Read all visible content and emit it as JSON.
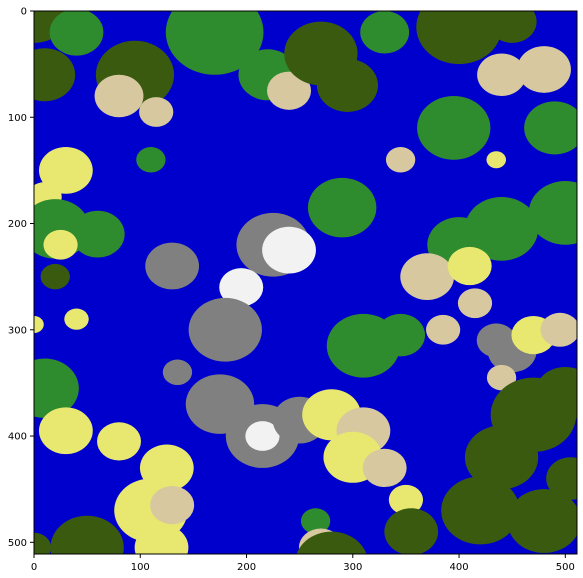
{
  "chart_data": {
    "type": "heatmap",
    "title": "",
    "xlabel": "",
    "ylabel": "",
    "xlim": [
      0,
      511
    ],
    "ylim": [
      511,
      0
    ],
    "x_ticks": [
      "0",
      "100",
      "200",
      "300",
      "400",
      "500"
    ],
    "y_ticks": [
      "0",
      "100",
      "200",
      "300",
      "400",
      "500"
    ],
    "grid": false,
    "legend": "none",
    "colors": {
      "deep_water": "#00008b",
      "water": "#0000cd",
      "sand": "#e8e870",
      "beach": "#d8c8a0",
      "grass": "#2e8b2e",
      "forest": "#3a5a10",
      "rock": "#808080",
      "snow": "#f2f2f2"
    },
    "regions": [
      {
        "terrain": "forest",
        "x": 0,
        "y": 0,
        "r": 30
      },
      {
        "terrain": "forest",
        "x": 10,
        "y": 60,
        "r": 25
      },
      {
        "terrain": "grass",
        "x": 40,
        "y": 20,
        "r": 22
      },
      {
        "terrain": "forest",
        "x": 95,
        "y": 60,
        "r": 32
      },
      {
        "terrain": "beach",
        "x": 80,
        "y": 80,
        "r": 20
      },
      {
        "terrain": "beach",
        "x": 115,
        "y": 95,
        "r": 14
      },
      {
        "terrain": "grass",
        "x": 110,
        "y": 140,
        "r": 12
      },
      {
        "terrain": "sand",
        "x": 30,
        "y": 150,
        "r": 22
      },
      {
        "terrain": "sand",
        "x": 10,
        "y": 175,
        "r": 14
      },
      {
        "terrain": "grass",
        "x": 20,
        "y": 205,
        "r": 28
      },
      {
        "terrain": "grass",
        "x": 60,
        "y": 210,
        "r": 22
      },
      {
        "terrain": "sand",
        "x": 25,
        "y": 220,
        "r": 14
      },
      {
        "terrain": "forest",
        "x": 20,
        "y": 250,
        "r": 12
      },
      {
        "terrain": "sand",
        "x": 40,
        "y": 290,
        "r": 10
      },
      {
        "terrain": "sand",
        "x": 0,
        "y": 295,
        "r": 8
      },
      {
        "terrain": "grass",
        "x": 170,
        "y": 20,
        "r": 40
      },
      {
        "terrain": "grass",
        "x": 220,
        "y": 60,
        "r": 24
      },
      {
        "terrain": "beach",
        "x": 240,
        "y": 75,
        "r": 18
      },
      {
        "terrain": "forest",
        "x": 270,
        "y": 40,
        "r": 30
      },
      {
        "terrain": "forest",
        "x": 295,
        "y": 70,
        "r": 25
      },
      {
        "terrain": "grass",
        "x": 330,
        "y": 20,
        "r": 20
      },
      {
        "terrain": "forest",
        "x": 400,
        "y": 15,
        "r": 35
      },
      {
        "terrain": "forest",
        "x": 450,
        "y": 10,
        "r": 20
      },
      {
        "terrain": "grass",
        "x": 395,
        "y": 110,
        "r": 30
      },
      {
        "terrain": "beach",
        "x": 440,
        "y": 60,
        "r": 20
      },
      {
        "terrain": "beach",
        "x": 480,
        "y": 55,
        "r": 22
      },
      {
        "terrain": "grass",
        "x": 490,
        "y": 110,
        "r": 25
      },
      {
        "terrain": "grass",
        "x": 500,
        "y": 190,
        "r": 30
      },
      {
        "terrain": "beach",
        "x": 345,
        "y": 140,
        "r": 12
      },
      {
        "terrain": "sand",
        "x": 435,
        "y": 140,
        "r": 8
      },
      {
        "terrain": "grass",
        "x": 290,
        "y": 185,
        "r": 28
      },
      {
        "terrain": "grass",
        "x": 400,
        "y": 220,
        "r": 26
      },
      {
        "terrain": "grass",
        "x": 440,
        "y": 205,
        "r": 30
      },
      {
        "terrain": "beach",
        "x": 370,
        "y": 250,
        "r": 22
      },
      {
        "terrain": "sand",
        "x": 410,
        "y": 240,
        "r": 18
      },
      {
        "terrain": "beach",
        "x": 415,
        "y": 275,
        "r": 14
      },
      {
        "terrain": "rock",
        "x": 225,
        "y": 220,
        "r": 30
      },
      {
        "terrain": "rock",
        "x": 130,
        "y": 240,
        "r": 22
      },
      {
        "terrain": "snow",
        "x": 240,
        "y": 225,
        "r": 22
      },
      {
        "terrain": "snow",
        "x": 195,
        "y": 260,
        "r": 18
      },
      {
        "terrain": "rock",
        "x": 180,
        "y": 300,
        "r": 30
      },
      {
        "terrain": "rock",
        "x": 135,
        "y": 340,
        "r": 12
      },
      {
        "terrain": "grass",
        "x": 310,
        "y": 315,
        "r": 30
      },
      {
        "terrain": "grass",
        "x": 345,
        "y": 305,
        "r": 20
      },
      {
        "terrain": "beach",
        "x": 385,
        "y": 300,
        "r": 14
      },
      {
        "terrain": "grass",
        "x": 10,
        "y": 355,
        "r": 28
      },
      {
        "terrain": "sand",
        "x": 30,
        "y": 395,
        "r": 22
      },
      {
        "terrain": "sand",
        "x": 80,
        "y": 405,
        "r": 18
      },
      {
        "terrain": "sand",
        "x": 125,
        "y": 430,
        "r": 22
      },
      {
        "terrain": "sand",
        "x": 110,
        "y": 470,
        "r": 30
      },
      {
        "terrain": "beach",
        "x": 130,
        "y": 465,
        "r": 18
      },
      {
        "terrain": "sand",
        "x": 120,
        "y": 505,
        "r": 22
      },
      {
        "terrain": "forest",
        "x": 50,
        "y": 505,
        "r": 30
      },
      {
        "terrain": "forest",
        "x": 0,
        "y": 505,
        "r": 14
      },
      {
        "terrain": "rock",
        "x": 175,
        "y": 370,
        "r": 28
      },
      {
        "terrain": "rock",
        "x": 215,
        "y": 400,
        "r": 30
      },
      {
        "terrain": "snow",
        "x": 215,
        "y": 400,
        "r": 14
      },
      {
        "terrain": "rock",
        "x": 250,
        "y": 385,
        "r": 22
      },
      {
        "terrain": "sand",
        "x": 280,
        "y": 380,
        "r": 24
      },
      {
        "terrain": "beach",
        "x": 310,
        "y": 395,
        "r": 22
      },
      {
        "terrain": "sand",
        "x": 300,
        "y": 420,
        "r": 24
      },
      {
        "terrain": "beach",
        "x": 330,
        "y": 430,
        "r": 18
      },
      {
        "terrain": "sand",
        "x": 350,
        "y": 460,
        "r": 14
      },
      {
        "terrain": "grass",
        "x": 265,
        "y": 480,
        "r": 12
      },
      {
        "terrain": "beach",
        "x": 270,
        "y": 505,
        "r": 18
      },
      {
        "terrain": "forest",
        "x": 280,
        "y": 520,
        "r": 30
      },
      {
        "terrain": "forest",
        "x": 355,
        "y": 490,
        "r": 22
      },
      {
        "terrain": "rock",
        "x": 435,
        "y": 310,
        "r": 16
      },
      {
        "terrain": "rock",
        "x": 450,
        "y": 320,
        "r": 20
      },
      {
        "terrain": "beach",
        "x": 440,
        "y": 345,
        "r": 12
      },
      {
        "terrain": "sand",
        "x": 470,
        "y": 305,
        "r": 18
      },
      {
        "terrain": "beach",
        "x": 495,
        "y": 300,
        "r": 16
      },
      {
        "terrain": "forest",
        "x": 470,
        "y": 380,
        "r": 35
      },
      {
        "terrain": "forest",
        "x": 500,
        "y": 360,
        "r": 25
      },
      {
        "terrain": "forest",
        "x": 440,
        "y": 420,
        "r": 30
      },
      {
        "terrain": "forest",
        "x": 420,
        "y": 470,
        "r": 32
      },
      {
        "terrain": "forest",
        "x": 480,
        "y": 480,
        "r": 30
      },
      {
        "terrain": "forest",
        "x": 505,
        "y": 440,
        "r": 20
      }
    ]
  }
}
